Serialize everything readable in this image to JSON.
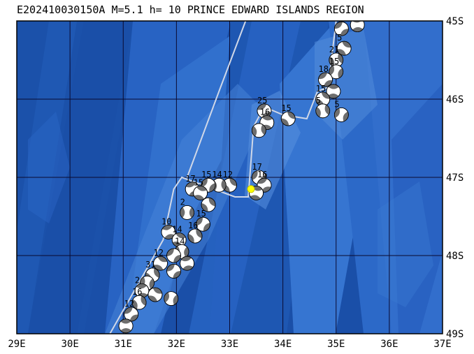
{
  "title": "E202410030150A M=5.1 h= 10 PRINCE EDWARD ISLANDS REGION",
  "map": {
    "lon_range": [
      29,
      37
    ],
    "lat_range": [
      45,
      49
    ],
    "lon_labels": [
      "29E",
      "30E",
      "31E",
      "32E",
      "33E",
      "34E",
      "35E",
      "36E",
      "37E"
    ],
    "lat_labels": [
      "45S",
      "46S",
      "47S",
      "48S",
      "49S"
    ],
    "colors": {
      "ocean_deep": "#1a4fa8",
      "ocean_mid": "#2a62c4",
      "ridge": "#3f7fd8",
      "ridge_light": "#5b95e2",
      "plate_boundary": "#d0d8e8",
      "grid": "#0a0a30",
      "event_marker": "#ffff00"
    },
    "main_event": {
      "lon": 33.4,
      "lat": 47.15
    },
    "plate_boundary": [
      [
        30.75,
        49.0
      ],
      [
        31.75,
        47.8
      ],
      [
        31.95,
        47.15
      ],
      [
        32.1,
        47.0
      ],
      [
        33.1,
        47.25
      ],
      [
        33.35,
        47.25
      ],
      [
        33.45,
        46.35
      ],
      [
        33.65,
        46.1
      ],
      [
        34.0,
        46.2
      ],
      [
        34.45,
        46.25
      ],
      [
        34.65,
        45.9
      ],
      [
        34.65,
        45.9
      ]
    ],
    "plate_boundary_north": [
      [
        32.2,
        47.0
      ],
      [
        32.8,
        45.9
      ],
      [
        33.3,
        45.0
      ]
    ],
    "plate_boundary_east": [
      [
        34.65,
        45.9
      ],
      [
        34.85,
        45.85
      ],
      [
        35.0,
        45.0
      ]
    ],
    "mechanisms": [
      {
        "lon": 35.1,
        "lat": 45.1,
        "label": "15"
      },
      {
        "lon": 35.4,
        "lat": 45.05,
        "label": ""
      },
      {
        "lon": 35.15,
        "lat": 45.35,
        "label": "5"
      },
      {
        "lon": 35.0,
        "lat": 45.5,
        "label": "21"
      },
      {
        "lon": 35.0,
        "lat": 45.65,
        "label": "15"
      },
      {
        "lon": 34.8,
        "lat": 45.75,
        "label": "18"
      },
      {
        "lon": 34.95,
        "lat": 45.9,
        "label": ""
      },
      {
        "lon": 34.75,
        "lat": 46.0,
        "label": "15"
      },
      {
        "lon": 34.75,
        "lat": 46.15,
        "label": "5"
      },
      {
        "lon": 35.1,
        "lat": 46.2,
        "label": "5"
      },
      {
        "lon": 33.65,
        "lat": 46.15,
        "label": "25"
      },
      {
        "lon": 33.7,
        "lat": 46.3,
        "label": "16"
      },
      {
        "lon": 34.1,
        "lat": 46.25,
        "label": "15"
      },
      {
        "lon": 33.55,
        "lat": 46.4,
        "label": ""
      },
      {
        "lon": 33.55,
        "lat": 47.0,
        "label": "17"
      },
      {
        "lon": 33.65,
        "lat": 47.1,
        "label": "16"
      },
      {
        "lon": 33.5,
        "lat": 47.2,
        "label": ""
      },
      {
        "lon": 33.0,
        "lat": 47.1,
        "label": "12"
      },
      {
        "lon": 32.8,
        "lat": 47.1,
        "label": "14"
      },
      {
        "lon": 32.6,
        "lat": 47.1,
        "label": "15"
      },
      {
        "lon": 32.3,
        "lat": 47.15,
        "label": "17"
      },
      {
        "lon": 32.45,
        "lat": 47.2,
        "label": "15"
      },
      {
        "lon": 32.6,
        "lat": 47.35,
        "label": ""
      },
      {
        "lon": 32.2,
        "lat": 47.45,
        "label": "2"
      },
      {
        "lon": 32.5,
        "lat": 47.6,
        "label": "15"
      },
      {
        "lon": 31.85,
        "lat": 47.7,
        "label": "10"
      },
      {
        "lon": 32.05,
        "lat": 47.8,
        "label": "14"
      },
      {
        "lon": 32.35,
        "lat": 47.75,
        "label": "16"
      },
      {
        "lon": 32.1,
        "lat": 47.95,
        "label": "14"
      },
      {
        "lon": 31.95,
        "lat": 48.0,
        "label": ""
      },
      {
        "lon": 32.2,
        "lat": 48.1,
        "label": ""
      },
      {
        "lon": 31.7,
        "lat": 48.1,
        "label": "12"
      },
      {
        "lon": 31.55,
        "lat": 48.25,
        "label": "31"
      },
      {
        "lon": 31.45,
        "lat": 48.35,
        "label": ""
      },
      {
        "lon": 31.95,
        "lat": 48.2,
        "label": ""
      },
      {
        "lon": 31.35,
        "lat": 48.45,
        "label": "2"
      },
      {
        "lon": 31.6,
        "lat": 48.5,
        "label": ""
      },
      {
        "lon": 31.3,
        "lat": 48.6,
        "label": "16"
      },
      {
        "lon": 31.9,
        "lat": 48.55,
        "label": ""
      },
      {
        "lon": 31.15,
        "lat": 48.75,
        "label": "12"
      },
      {
        "lon": 31.05,
        "lat": 48.9,
        "label": ""
      }
    ]
  }
}
